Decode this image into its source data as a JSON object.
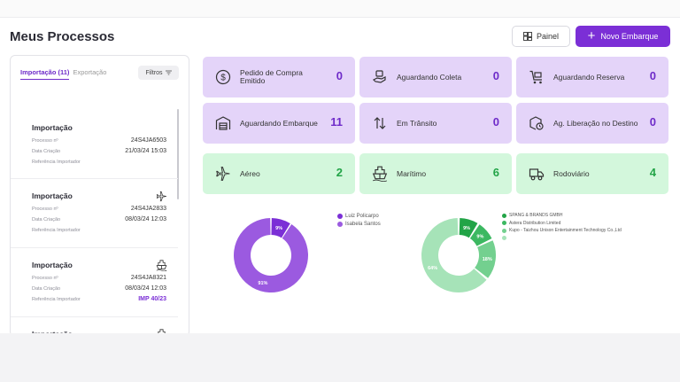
{
  "header": {
    "title": "Meus Processos",
    "painel_label": "Painel",
    "novo_label": "Novo Embarque"
  },
  "sidebar": {
    "tab_import": "Importação (11)",
    "tab_export": "Exportação",
    "filter_label": "Filtros",
    "items": [
      {
        "title": "Importação",
        "icon": "none",
        "processo_label": "Processo nº",
        "processo": "24S4JA6503",
        "data_label": "Data Criação",
        "data": "21/03/24 15:03",
        "ref_label": "Referência Importador",
        "ref": ""
      },
      {
        "title": "Importação",
        "icon": "airplane-icon",
        "processo_label": "Processo nº",
        "processo": "24S4JA2833",
        "data_label": "Data Criação",
        "data": "08/03/24 12:03",
        "ref_label": "Referência Importador",
        "ref": ""
      },
      {
        "title": "Importação",
        "icon": "ship-icon",
        "processo_label": "Processo nº",
        "processo": "24S4JA8321",
        "data_label": "Data Criação",
        "data": "08/03/24 12:03",
        "ref_label": "Referência Importador",
        "ref": "IMP 40/23"
      },
      {
        "title": "Importação",
        "icon": "ship-icon"
      }
    ]
  },
  "cards": [
    {
      "label": "Pedido de Compra Emitido",
      "value": "0",
      "icon": "dollar-circle-icon",
      "color": "#e4d4f9"
    },
    {
      "label": "Aguardando Coleta",
      "value": "0",
      "icon": "hand-box-icon",
      "color": "#e4d4f9"
    },
    {
      "label": "Aguardando Reserva",
      "value": "0",
      "icon": "cart-icon",
      "color": "#e4d4f9"
    },
    {
      "label": "Aguardando Embarque",
      "value": "11",
      "icon": "warehouse-icon",
      "color": "#e4d4f9"
    },
    {
      "label": "Em Trânsito",
      "value": "0",
      "icon": "arrows-updown-icon",
      "color": "#e4d4f9"
    },
    {
      "label": "Ag. Liberação no Destino",
      "value": "0",
      "icon": "box-clock-icon",
      "color": "#e4d4f9"
    },
    {
      "label": "Aéreo",
      "value": "2",
      "icon": "airplane-icon",
      "color": "#d3f7dc"
    },
    {
      "label": "Marítimo",
      "value": "6",
      "icon": "ship-icon",
      "color": "#d3f7dc"
    },
    {
      "label": "Rodoviário",
      "value": "4",
      "icon": "truck-icon",
      "color": "#d3f7dc"
    }
  ],
  "chart_data": [
    {
      "type": "pie",
      "categories": [
        "Luiz Policarpo",
        "Isabela Santos"
      ],
      "values": [
        9,
        91
      ],
      "data_labels": [
        "9%",
        "91%"
      ],
      "colors": [
        "#7b2fd6",
        "#9b5ae0"
      ]
    },
    {
      "type": "pie",
      "categories": [
        "SPANG & BRANDS GMBH",
        "Astera Distribution Limited",
        "Kupo - Taizhou Unison Entertainment Technology Co.,Ltd",
        ""
      ],
      "values": [
        9,
        9,
        18,
        64
      ],
      "data_labels": [
        "9%",
        "9%",
        "18%",
        "64%"
      ],
      "colors": [
        "#22a447",
        "#3cb861",
        "#73d08f",
        "#a6e3b8"
      ]
    }
  ],
  "colors": {
    "accent": "#7b2fd6",
    "purple_card": "#e4d4f9",
    "green_card": "#d3f7dc",
    "green_value": "#22a447"
  }
}
